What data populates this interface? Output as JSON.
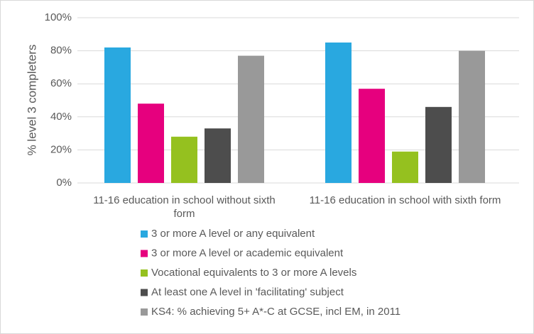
{
  "chart_data": {
    "type": "bar",
    "y_label": "% level 3 completers",
    "categories": [
      "11-16 education in school without sixth form",
      "11-16 education in school with sixth form"
    ],
    "series": [
      {
        "name": "3 or more A level or any equivalent",
        "color": "#29a8e0",
        "values": [
          82,
          85
        ]
      },
      {
        "name": "3 or more A level or academic equivalent",
        "color": "#e6007e",
        "values": [
          48,
          57
        ]
      },
      {
        "name": "Vocational equivalents to 3 or more A levels",
        "color": "#95c11f",
        "values": [
          28,
          19
        ]
      },
      {
        "name": "At least one A level in 'facilitating' subject",
        "color": "#4d4d4d",
        "values": [
          33,
          46
        ]
      },
      {
        "name": "KS4: % achieving 5+ A*-C at GCSE, incl EM, in 2011",
        "color": "#999999",
        "values": [
          77,
          80
        ]
      }
    ],
    "ylim": [
      0,
      100
    ],
    "yticks": [
      {
        "value": 0,
        "label": "0%"
      },
      {
        "value": 20,
        "label": "20%"
      },
      {
        "value": 40,
        "label": "40%"
      },
      {
        "value": 60,
        "label": "60%"
      },
      {
        "value": 80,
        "label": "80%"
      },
      {
        "value": 100,
        "label": "100%"
      }
    ],
    "grid": true,
    "legend": "bottom"
  }
}
